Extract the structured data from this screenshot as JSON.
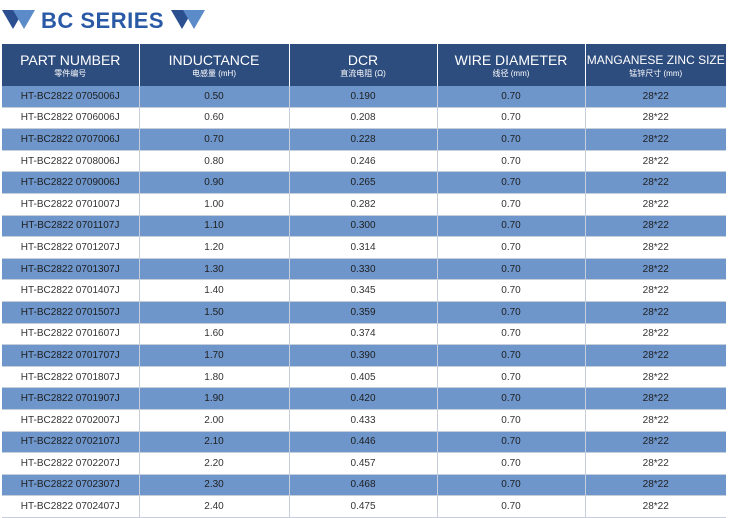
{
  "title": "BC SERIES",
  "colors": {
    "header_bg": "#2e4d7f",
    "row_odd": "#6e96cb",
    "row_even": "#ffffff",
    "title": "#2a5aa6",
    "triangle_dark": "#2c4f8f",
    "triangle_light": "#5b8bc9"
  },
  "icons": [
    "double-triangle-left-icon",
    "double-triangle-right-icon"
  ],
  "table": {
    "headers": [
      {
        "en": "PART NUMBER",
        "cn": "零件编号"
      },
      {
        "en": "INDUCTANCE",
        "cn": "电感量 (mH)"
      },
      {
        "en": "DCR",
        "cn": "直流电阻 (Ω)"
      },
      {
        "en": "WIRE DIAMETER",
        "cn": "线径 (mm)"
      },
      {
        "en": "MANGANESE ZINC SIZE",
        "cn": "锰锌尺寸 (mm)"
      }
    ],
    "rows": [
      [
        "HT-BC2822 0705006J",
        "0.50",
        "0.190",
        "0.70",
        "28*22"
      ],
      [
        "HT-BC2822 0706006J",
        "0.60",
        "0.208",
        "0.70",
        "28*22"
      ],
      [
        "HT-BC2822 0707006J",
        "0.70",
        "0.228",
        "0.70",
        "28*22"
      ],
      [
        "HT-BC2822 0708006J",
        "0.80",
        "0.246",
        "0.70",
        "28*22"
      ],
      [
        "HT-BC2822 0709006J",
        "0.90",
        "0.265",
        "0.70",
        "28*22"
      ],
      [
        "HT-BC2822 0701007J",
        "1.00",
        "0.282",
        "0.70",
        "28*22"
      ],
      [
        "HT-BC2822 0701107J",
        "1.10",
        "0.300",
        "0.70",
        "28*22"
      ],
      [
        "HT-BC2822 0701207J",
        "1.20",
        "0.314",
        "0.70",
        "28*22"
      ],
      [
        "HT-BC2822 0701307J",
        "1.30",
        "0.330",
        "0.70",
        "28*22"
      ],
      [
        "HT-BC2822 0701407J",
        "1.40",
        "0.345",
        "0.70",
        "28*22"
      ],
      [
        "HT-BC2822 0701507J",
        "1.50",
        "0.359",
        "0.70",
        "28*22"
      ],
      [
        "HT-BC2822 0701607J",
        "1.60",
        "0.374",
        "0.70",
        "28*22"
      ],
      [
        "HT-BC2822 0701707J",
        "1.70",
        "0.390",
        "0.70",
        "28*22"
      ],
      [
        "HT-BC2822 0701807J",
        "1.80",
        "0.405",
        "0.70",
        "28*22"
      ],
      [
        "HT-BC2822 0701907J",
        "1.90",
        "0.420",
        "0.70",
        "28*22"
      ],
      [
        "HT-BC2822 0702007J",
        "2.00",
        "0.433",
        "0.70",
        "28*22"
      ],
      [
        "HT-BC2822 0702107J",
        "2.10",
        "0.446",
        "0.70",
        "28*22"
      ],
      [
        "HT-BC2822 0702207J",
        "2.20",
        "0.457",
        "0.70",
        "28*22"
      ],
      [
        "HT-BC2822 0702307J",
        "2.30",
        "0.468",
        "0.70",
        "28*22"
      ],
      [
        "HT-BC2822 0702407J",
        "2.40",
        "0.475",
        "0.70",
        "28*22"
      ]
    ]
  }
}
